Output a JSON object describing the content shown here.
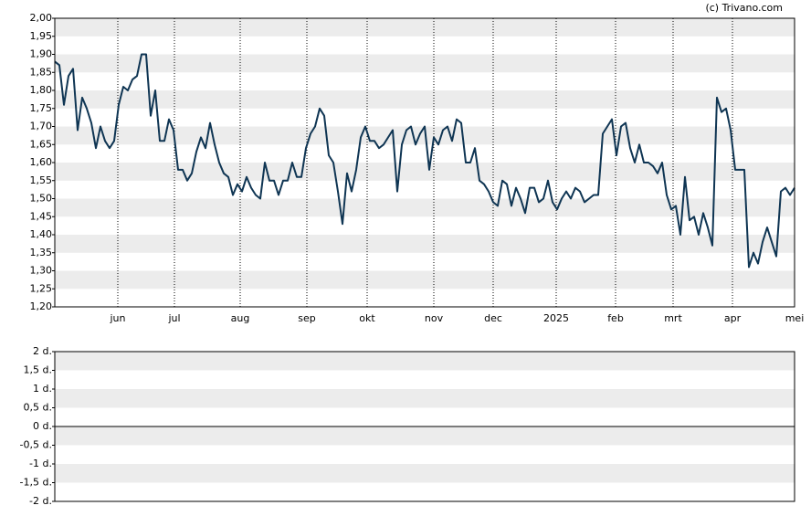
{
  "chart_data": [
    {
      "type": "line",
      "source": "(c) Trivano.com",
      "color": "#0f3553",
      "values": [
        1.88,
        1.87,
        1.76,
        1.84,
        1.86,
        1.69,
        1.78,
        1.75,
        1.71,
        1.64,
        1.7,
        1.66,
        1.64,
        1.66,
        1.76,
        1.81,
        1.8,
        1.83,
        1.84,
        1.9,
        1.9,
        1.73,
        1.8,
        1.66,
        1.66,
        1.72,
        1.69,
        1.58,
        1.58,
        1.55,
        1.57,
        1.63,
        1.67,
        1.64,
        1.71,
        1.65,
        1.6,
        1.57,
        1.56,
        1.51,
        1.54,
        1.52,
        1.56,
        1.53,
        1.51,
        1.5,
        1.6,
        1.55,
        1.55,
        1.51,
        1.55,
        1.55,
        1.6,
        1.56,
        1.56,
        1.64,
        1.68,
        1.7,
        1.75,
        1.73,
        1.62,
        1.6,
        1.52,
        1.43,
        1.57,
        1.52,
        1.58,
        1.67,
        1.7,
        1.66,
        1.66,
        1.64,
        1.65,
        1.67,
        1.69,
        1.52,
        1.65,
        1.69,
        1.7,
        1.65,
        1.68,
        1.7,
        1.58,
        1.67,
        1.65,
        1.69,
        1.7,
        1.66,
        1.72,
        1.71,
        1.6,
        1.6,
        1.64,
        1.55,
        1.54,
        1.52,
        1.49,
        1.48,
        1.55,
        1.54,
        1.48,
        1.53,
        1.5,
        1.46,
        1.53,
        1.53,
        1.49,
        1.5,
        1.55,
        1.49,
        1.47,
        1.5,
        1.52,
        1.5,
        1.53,
        1.52,
        1.49,
        1.5,
        1.51,
        1.51,
        1.68,
        1.7,
        1.72,
        1.62,
        1.7,
        1.71,
        1.64,
        1.6,
        1.65,
        1.6,
        1.6,
        1.59,
        1.57,
        1.6,
        1.51,
        1.47,
        1.48,
        1.4,
        1.56,
        1.44,
        1.45,
        1.4,
        1.46,
        1.42,
        1.37,
        1.78,
        1.74,
        1.75,
        1.69,
        1.58,
        1.58,
        1.58,
        1.31,
        1.35,
        1.32,
        1.38,
        1.42,
        1.38,
        1.34,
        1.52,
        1.53,
        1.51,
        1.53
      ],
      "xlim": [
        0,
        162
      ],
      "xticks": [
        {
          "value": 13.8,
          "label": "jun"
        },
        {
          "value": 26.2,
          "label": "jul"
        },
        {
          "value": 40.6,
          "label": "aug"
        },
        {
          "value": 55.2,
          "label": "sep"
        },
        {
          "value": 68.4,
          "label": "okt"
        },
        {
          "value": 83,
          "label": "nov"
        },
        {
          "value": 96,
          "label": "dec"
        },
        {
          "value": 109.8,
          "label": "2025"
        },
        {
          "value": 122.8,
          "label": "feb"
        },
        {
          "value": 135.4,
          "label": "mrt"
        },
        {
          "value": 148.4,
          "label": "apr"
        },
        {
          "value": 162,
          "label": "mei"
        }
      ],
      "ylim": [
        1.2,
        2.0
      ],
      "yticks": [
        {
          "value": 1.2,
          "label": "1,20"
        },
        {
          "value": 1.25,
          "label": "1,25"
        },
        {
          "value": 1.3,
          "label": "1,30"
        },
        {
          "value": 1.35,
          "label": "1,35"
        },
        {
          "value": 1.4,
          "label": "1,40"
        },
        {
          "value": 1.45,
          "label": "1,45"
        },
        {
          "value": 1.5,
          "label": "1,50"
        },
        {
          "value": 1.55,
          "label": "1,55"
        },
        {
          "value": 1.6,
          "label": "1,60"
        },
        {
          "value": 1.65,
          "label": "1,65"
        },
        {
          "value": 1.7,
          "label": "1,70"
        },
        {
          "value": 1.75,
          "label": "1,75"
        },
        {
          "value": 1.8,
          "label": "1,80"
        },
        {
          "value": 1.85,
          "label": "1,85"
        },
        {
          "value": 1.9,
          "label": "1,90"
        },
        {
          "value": 1.95,
          "label": "1,95"
        },
        {
          "value": 2.0,
          "label": "2,00"
        }
      ]
    },
    {
      "type": "bar",
      "ylim": [
        -2,
        2
      ],
      "yticks": [
        {
          "value": -2,
          "label": "-2 d."
        },
        {
          "value": -1.5,
          "label": "-1,5 d."
        },
        {
          "value": -1,
          "label": "-1 d."
        },
        {
          "value": -0.5,
          "label": "-0,5 d."
        },
        {
          "value": 0,
          "label": "0 d."
        },
        {
          "value": 0.5,
          "label": "0,5 d."
        },
        {
          "value": 1,
          "label": "1 d."
        },
        {
          "value": 1.5,
          "label": "1,5 d."
        },
        {
          "value": 2,
          "label": "2 d."
        }
      ]
    }
  ]
}
